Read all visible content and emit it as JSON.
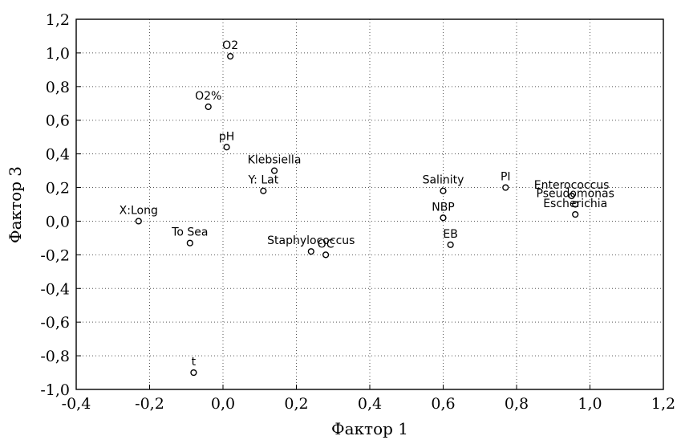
{
  "chart_data": {
    "type": "scatter",
    "xlabel": "Фактор 1",
    "ylabel": "Фактор 3",
    "xlim": [
      -0.4,
      1.2
    ],
    "ylim": [
      -1.0,
      1.2
    ],
    "x_ticks": [
      "-0,4",
      "-0,2",
      "0,0",
      "0,2",
      "0,4",
      "0,6",
      "0,8",
      "1,0",
      "1,2"
    ],
    "y_ticks": [
      "1,2",
      "1,0",
      "0,8",
      "0,6",
      "0,4",
      "0,2",
      "0,0",
      "-0,2",
      "-0,4",
      "-0,6",
      "-0,8",
      "-1,0"
    ],
    "grid": true,
    "points": [
      {
        "label": "O2",
        "x": 0.02,
        "y": 0.98
      },
      {
        "label": "O2%",
        "x": -0.04,
        "y": 0.68
      },
      {
        "label": "pH",
        "x": 0.01,
        "y": 0.44
      },
      {
        "label": "Klebsiella",
        "x": 0.14,
        "y": 0.3
      },
      {
        "label": "Y: Lat",
        "x": 0.11,
        "y": 0.18
      },
      {
        "label": "X:Long",
        "x": -0.23,
        "y": 0.0
      },
      {
        "label": "To Sea",
        "x": -0.09,
        "y": -0.13
      },
      {
        "label": "Staphylococcus",
        "x": 0.24,
        "y": -0.18
      },
      {
        "label": "OC",
        "x": 0.28,
        "y": -0.2
      },
      {
        "label": "t",
        "x": -0.08,
        "y": -0.9
      },
      {
        "label": "Salinity",
        "x": 0.6,
        "y": 0.18
      },
      {
        "label": "NBP",
        "x": 0.6,
        "y": 0.02
      },
      {
        "label": "EB",
        "x": 0.62,
        "y": -0.14
      },
      {
        "label": "PI",
        "x": 0.77,
        "y": 0.2
      },
      {
        "label": "Enterococcus",
        "x": 0.95,
        "y": 0.15
      },
      {
        "label": "Pseudomonas",
        "x": 0.96,
        "y": 0.1
      },
      {
        "label": "Escherichia",
        "x": 0.96,
        "y": 0.04
      }
    ]
  }
}
